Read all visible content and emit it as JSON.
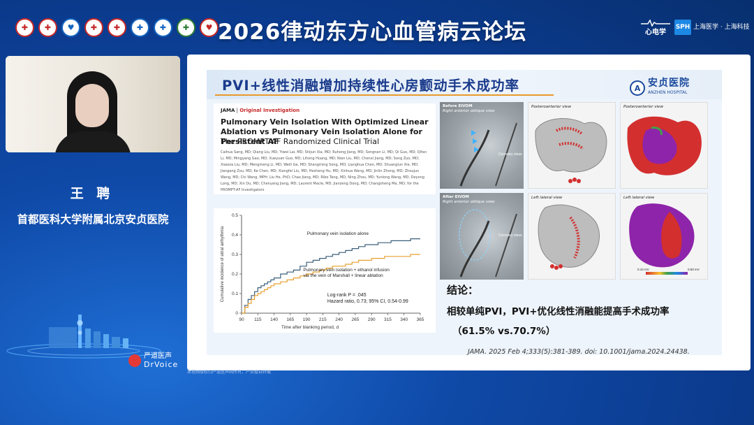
{
  "header": {
    "title": "2026律动东方心血管病云论坛",
    "logos": [
      "1",
      "2",
      "3",
      "4",
      "5",
      "6",
      "7",
      "8",
      "9"
    ],
    "sponsor1": "心电学",
    "sponsor2_box": "SPH",
    "sponsor2_text": "上海医学 · 上海科技"
  },
  "speaker": {
    "name": "王 聘",
    "organization": "首都医科大学附属北京安贞医院"
  },
  "brand": {
    "cn": "严道医声",
    "en": "DrVoice",
    "watermark": "严道医学"
  },
  "slide": {
    "title": "PVI+线性消融增加持续性心房颤动手术成功率",
    "hospital_cn": "安贞医院",
    "hospital_en": "ANZHEN HOSPITAL",
    "paper": {
      "journal": "JAMA",
      "type": "Original Investigation",
      "title": "Pulmonary Vein Isolation With Optimized Linear Ablation vs Pulmonary Vein Isolation Alone for Persistent AF",
      "subtitle": "The PROMPT-AF Randomized Clinical Trial",
      "authors": "Caihua Sang, MD; Qiang Liu, MD; Yiwei Lai, MD; Shijun Xia, MD; Ruhong Jiang, MD; Songnan Li, MD; Qi Guo, MD; Qifan Li, MD; Mingyang Gao, MD; Xueyuan Guo, MD; Lihong Huang, MD; Nian Liu, MD; Chenxi Jiang, MD; Song Zuo, MD; Xiaoxia Liu, MD; Mengmeng Li, MD; Weili Ge, MD; Shangming Song, MD; Lianghua Chen, MD; Shuanglun Xie, MD; Jiangang Zou, MD; Ke Chen, MD; Xiangfei Liu, MD; Hesheng Hu, MD; Xinhua Wang, MD; Jinlin Zhong, MD; Zhoujun Wang, MD; Chi Wang, MPH; Liu He, PhD; Chao Jiang, MD; Ribo Tang, MD; Ning Zhou, MD; Yunlong Wang, MD; Deyong Long, MD; Xin Du, MD; Chenyang Jiang, MD; Laurent Macle, MD; Jianzeng Dong, MD; Changsheng Ma, MD; for the PROMPT-AF Investigators"
    },
    "images": {
      "before": "Before EIVOM",
      "after": "After EIVOM",
      "rao": "Right anterior oblique view",
      "coronary_sinus": "Coronary sinus",
      "posteroanterior": "Posteroanterior view",
      "left_lateral": "Left lateral view",
      "scale_min": "0.10 mV",
      "scale_max": "0.50 mV"
    },
    "conclusion": {
      "head": "结论：",
      "body": "相较单纯PVI，PVI+优化线性消融能提高手术成功率",
      "stat": "（61.5% vs.70.7%）"
    },
    "citation": "JAMA. 2025 Feb 4;333(5):381-389. doi: 10.1001/jama.2024.24438.",
    "caption": "本视频版权归严道医声网所有，严禁擅自转载"
  },
  "chart_data": {
    "type": "line",
    "xlabel": "Time after blanking period, d",
    "ylabel": "Cumulative incidence of atrial arrhythmia",
    "x_ticks": [
      90,
      115,
      140,
      165,
      190,
      215,
      240,
      265,
      290,
      315,
      340,
      365
    ],
    "y_ticks": [
      0,
      0.1,
      0.2,
      0.3,
      0.4,
      0.5
    ],
    "xlim": [
      90,
      365
    ],
    "ylim": [
      0,
      0.5
    ],
    "series": [
      {
        "name": "Pulmonary vein isolation alone",
        "color": "#3a5f7a",
        "x": [
          90,
          95,
          100,
          105,
          110,
          115,
          120,
          125,
          130,
          135,
          140,
          150,
          160,
          170,
          180,
          190,
          200,
          210,
          220,
          230,
          240,
          250,
          260,
          270,
          280,
          290,
          300,
          310,
          320,
          330,
          340,
          350,
          360,
          365
        ],
        "y": [
          0.0,
          0.04,
          0.07,
          0.09,
          0.11,
          0.13,
          0.14,
          0.15,
          0.16,
          0.17,
          0.18,
          0.2,
          0.21,
          0.22,
          0.24,
          0.26,
          0.27,
          0.28,
          0.29,
          0.3,
          0.31,
          0.32,
          0.33,
          0.34,
          0.35,
          0.35,
          0.36,
          0.36,
          0.37,
          0.37,
          0.37,
          0.38,
          0.38,
          0.38
        ]
      },
      {
        "name": "Pulmonary vein isolation + ethanol infusion via the vein of Marshall + linear ablation",
        "color": "#e8a030",
        "x": [
          90,
          95,
          100,
          105,
          110,
          115,
          120,
          125,
          130,
          135,
          140,
          150,
          160,
          170,
          180,
          190,
          200,
          210,
          220,
          230,
          240,
          250,
          260,
          270,
          280,
          290,
          300,
          310,
          320,
          330,
          340,
          350,
          360,
          365
        ],
        "y": [
          0.0,
          0.03,
          0.05,
          0.07,
          0.09,
          0.1,
          0.11,
          0.12,
          0.13,
          0.14,
          0.15,
          0.16,
          0.17,
          0.18,
          0.19,
          0.2,
          0.21,
          0.22,
          0.23,
          0.24,
          0.24,
          0.25,
          0.26,
          0.27,
          0.27,
          0.28,
          0.28,
          0.29,
          0.29,
          0.29,
          0.29,
          0.3,
          0.3,
          0.3
        ]
      }
    ],
    "annotations": {
      "logrank": "Log-rank P = .045",
      "hr": "Hazard ratio, 0.73; 95% CI, 0.54-0.99",
      "label1": "Pulmonary vein isolation alone",
      "label2a": "Pulmonary vein isolation + ethanol infusion",
      "label2b": "via the vein of Marshall + linear ablation"
    }
  }
}
